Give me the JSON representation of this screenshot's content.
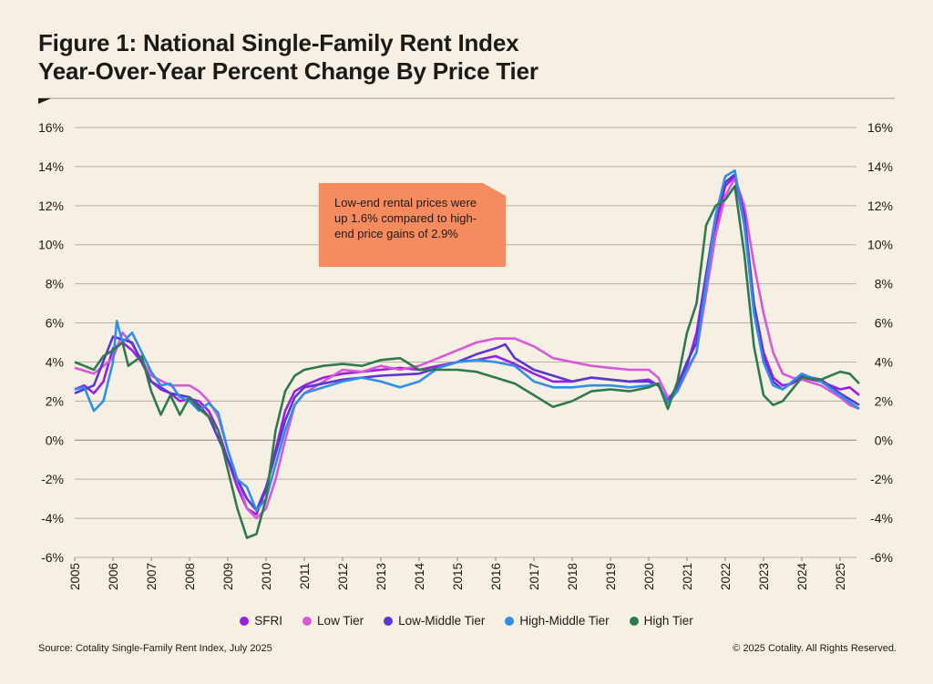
{
  "chart_data": {
    "type": "line",
    "title": "Figure 1: National Single-Family Rent Index",
    "subtitle": "Year-Over-Year Percent Change By Price Tier",
    "xlabel": "",
    "ylabel": "",
    "xlim": [
      2005,
      2025.5
    ],
    "ylim": [
      -6,
      16
    ],
    "x_ticks": [
      "2005",
      "2006",
      "2007",
      "2008",
      "2009",
      "2010",
      "2011",
      "2012",
      "2013",
      "2014",
      "2015",
      "2016",
      "2017",
      "2018",
      "2019",
      "2020",
      "2021",
      "2022",
      "2023",
      "2024",
      "2025"
    ],
    "y_ticks": [
      "16%",
      "14%",
      "12%",
      "10%",
      "8%",
      "6%",
      "4%",
      "2%",
      "0%",
      "-2%",
      "-4%",
      "-6%"
    ],
    "grid": true,
    "legend_position": "bottom",
    "annotation": "Low-end rental prices were up 1.6% compared to high-end price gains of 2.9%",
    "series": [
      {
        "name": "SFRI",
        "color": "#9a1fe0",
        "points": [
          [
            2005,
            2.6
          ],
          [
            2005.25,
            2.8
          ],
          [
            2005.5,
            2.4
          ],
          [
            2005.75,
            3.0
          ],
          [
            2006,
            4.7
          ],
          [
            2006.25,
            5.0
          ],
          [
            2006.5,
            4.6
          ],
          [
            2006.75,
            4.0
          ],
          [
            2007,
            3.0
          ],
          [
            2007.25,
            2.6
          ],
          [
            2007.5,
            2.4
          ],
          [
            2007.75,
            2.0
          ],
          [
            2008,
            2.1
          ],
          [
            2008.25,
            2.0
          ],
          [
            2008.5,
            1.5
          ],
          [
            2008.75,
            0.5
          ],
          [
            2009,
            -1.0
          ],
          [
            2009.25,
            -2.4
          ],
          [
            2009.5,
            -3.5
          ],
          [
            2009.75,
            -3.8
          ],
          [
            2010,
            -2.5
          ],
          [
            2010.25,
            -0.5
          ],
          [
            2010.5,
            1.5
          ],
          [
            2010.75,
            2.5
          ],
          [
            2011,
            2.8
          ],
          [
            2011.5,
            3.2
          ],
          [
            2012,
            3.4
          ],
          [
            2012.5,
            3.5
          ],
          [
            2013,
            3.6
          ],
          [
            2013.5,
            3.7
          ],
          [
            2014,
            3.6
          ],
          [
            2014.5,
            3.8
          ],
          [
            2015,
            4.0
          ],
          [
            2015.5,
            4.1
          ],
          [
            2016,
            4.3
          ],
          [
            2016.5,
            3.9
          ],
          [
            2017,
            3.4
          ],
          [
            2017.5,
            3.0
          ],
          [
            2018,
            3.0
          ],
          [
            2018.5,
            3.2
          ],
          [
            2019,
            3.1
          ],
          [
            2019.5,
            3.0
          ],
          [
            2020,
            3.1
          ],
          [
            2020.25,
            2.8
          ],
          [
            2020.5,
            2.0
          ],
          [
            2020.75,
            2.6
          ],
          [
            2021,
            3.8
          ],
          [
            2021.25,
            5.5
          ],
          [
            2021.5,
            8.5
          ],
          [
            2021.75,
            11.0
          ],
          [
            2022,
            13.0
          ],
          [
            2022.25,
            13.5
          ],
          [
            2022.5,
            11.0
          ],
          [
            2022.75,
            7.0
          ],
          [
            2023,
            4.5
          ],
          [
            2023.25,
            3.2
          ],
          [
            2023.5,
            2.8
          ],
          [
            2023.75,
            2.9
          ],
          [
            2024,
            3.2
          ],
          [
            2024.25,
            3.1
          ],
          [
            2024.5,
            3.0
          ],
          [
            2024.75,
            2.8
          ],
          [
            2025,
            2.6
          ],
          [
            2025.25,
            2.7
          ],
          [
            2025.5,
            2.3
          ]
        ]
      },
      {
        "name": "Low Tier",
        "color": "#d858d8",
        "points": [
          [
            2005,
            3.7
          ],
          [
            2005.5,
            3.4
          ],
          [
            2006,
            4.2
          ],
          [
            2006.25,
            5.5
          ],
          [
            2006.5,
            4.9
          ],
          [
            2007,
            3.3
          ],
          [
            2007.5,
            2.8
          ],
          [
            2008,
            2.8
          ],
          [
            2008.25,
            2.5
          ],
          [
            2008.5,
            2.0
          ],
          [
            2008.75,
            1.2
          ],
          [
            2009,
            -0.5
          ],
          [
            2009.25,
            -2.0
          ],
          [
            2009.5,
            -3.5
          ],
          [
            2009.75,
            -4.0
          ],
          [
            2010,
            -3.5
          ],
          [
            2010.25,
            -2.0
          ],
          [
            2010.5,
            0.0
          ],
          [
            2010.75,
            1.8
          ],
          [
            2011,
            2.4
          ],
          [
            2011.5,
            3.0
          ],
          [
            2012,
            3.6
          ],
          [
            2012.5,
            3.5
          ],
          [
            2013,
            3.8
          ],
          [
            2013.5,
            3.6
          ],
          [
            2014,
            3.8
          ],
          [
            2014.5,
            4.2
          ],
          [
            2015,
            4.6
          ],
          [
            2015.5,
            5.0
          ],
          [
            2016,
            5.2
          ],
          [
            2016.5,
            5.2
          ],
          [
            2017,
            4.8
          ],
          [
            2017.5,
            4.2
          ],
          [
            2018,
            4.0
          ],
          [
            2018.5,
            3.8
          ],
          [
            2019,
            3.7
          ],
          [
            2019.5,
            3.6
          ],
          [
            2020,
            3.6
          ],
          [
            2020.25,
            3.2
          ],
          [
            2020.5,
            2.2
          ],
          [
            2020.75,
            2.5
          ],
          [
            2021,
            3.5
          ],
          [
            2021.25,
            4.5
          ],
          [
            2021.5,
            7.5
          ],
          [
            2021.75,
            10.5
          ],
          [
            2022,
            12.5
          ],
          [
            2022.25,
            13.4
          ],
          [
            2022.5,
            12.0
          ],
          [
            2022.75,
            9.0
          ],
          [
            2023,
            6.5
          ],
          [
            2023.25,
            4.5
          ],
          [
            2023.5,
            3.4
          ],
          [
            2023.75,
            3.2
          ],
          [
            2024,
            3.1
          ],
          [
            2024.5,
            2.8
          ],
          [
            2025,
            2.2
          ],
          [
            2025.25,
            1.8
          ],
          [
            2025.5,
            1.6
          ]
        ]
      },
      {
        "name": "Low-Middle Tier",
        "color": "#5a36d2",
        "points": [
          [
            2005,
            2.4
          ],
          [
            2005.5,
            2.8
          ],
          [
            2006,
            5.3
          ],
          [
            2006.5,
            5.0
          ],
          [
            2007,
            3.0
          ],
          [
            2007.5,
            2.4
          ],
          [
            2008,
            2.2
          ],
          [
            2008.25,
            1.8
          ],
          [
            2008.5,
            1.2
          ],
          [
            2009,
            -1.0
          ],
          [
            2009.5,
            -3.0
          ],
          [
            2009.75,
            -3.6
          ],
          [
            2010,
            -2.4
          ],
          [
            2010.5,
            1.0
          ],
          [
            2010.75,
            2.2
          ],
          [
            2011,
            2.7
          ],
          [
            2012,
            3.1
          ],
          [
            2013,
            3.3
          ],
          [
            2014,
            3.4
          ],
          [
            2015,
            4.0
          ],
          [
            2015.5,
            4.4
          ],
          [
            2016,
            4.7
          ],
          [
            2016.25,
            4.9
          ],
          [
            2016.5,
            4.2
          ],
          [
            2017,
            3.6
          ],
          [
            2017.5,
            3.3
          ],
          [
            2018,
            3.0
          ],
          [
            2018.5,
            3.2
          ],
          [
            2019,
            3.1
          ],
          [
            2019.5,
            3.0
          ],
          [
            2020,
            3.0
          ],
          [
            2020.25,
            2.8
          ],
          [
            2020.5,
            2.0
          ],
          [
            2020.75,
            2.8
          ],
          [
            2021,
            4.0
          ],
          [
            2021.25,
            5.0
          ],
          [
            2021.5,
            8.5
          ],
          [
            2021.75,
            11.5
          ],
          [
            2022,
            13.2
          ],
          [
            2022.25,
            13.6
          ],
          [
            2022.5,
            11.5
          ],
          [
            2022.75,
            7.0
          ],
          [
            2023,
            4.2
          ],
          [
            2023.25,
            3.0
          ],
          [
            2023.5,
            2.6
          ],
          [
            2024,
            3.3
          ],
          [
            2024.5,
            3.1
          ],
          [
            2025,
            2.4
          ],
          [
            2025.5,
            1.8
          ]
        ]
      },
      {
        "name": "High-Middle Tier",
        "color": "#2f8fe6",
        "points": [
          [
            2005,
            2.6
          ],
          [
            2005.25,
            2.7
          ],
          [
            2005.5,
            1.5
          ],
          [
            2005.75,
            2.0
          ],
          [
            2006,
            4.0
          ],
          [
            2006.1,
            6.1
          ],
          [
            2006.25,
            5.0
          ],
          [
            2006.5,
            5.5
          ],
          [
            2006.75,
            4.5
          ],
          [
            2007,
            3.5
          ],
          [
            2007.25,
            2.8
          ],
          [
            2007.5,
            2.9
          ],
          [
            2007.75,
            2.2
          ],
          [
            2008,
            2.0
          ],
          [
            2008.25,
            1.5
          ],
          [
            2008.5,
            1.9
          ],
          [
            2008.75,
            1.4
          ],
          [
            2009,
            -0.5
          ],
          [
            2009.25,
            -2.0
          ],
          [
            2009.5,
            -2.4
          ],
          [
            2009.75,
            -3.6
          ],
          [
            2010,
            -3.0
          ],
          [
            2010.5,
            0.5
          ],
          [
            2010.75,
            1.8
          ],
          [
            2011,
            2.4
          ],
          [
            2012,
            3.0
          ],
          [
            2012.5,
            3.2
          ],
          [
            2013,
            3.0
          ],
          [
            2013.5,
            2.7
          ],
          [
            2014,
            3.0
          ],
          [
            2014.5,
            3.7
          ],
          [
            2015,
            4.0
          ],
          [
            2015.5,
            4.1
          ],
          [
            2016,
            4.0
          ],
          [
            2016.5,
            3.8
          ],
          [
            2017,
            3.0
          ],
          [
            2017.5,
            2.7
          ],
          [
            2018,
            2.7
          ],
          [
            2018.5,
            2.8
          ],
          [
            2019,
            2.8
          ],
          [
            2019.5,
            2.7
          ],
          [
            2020,
            2.8
          ],
          [
            2020.25,
            2.9
          ],
          [
            2020.5,
            1.9
          ],
          [
            2020.75,
            2.5
          ],
          [
            2021,
            3.6
          ],
          [
            2021.25,
            4.5
          ],
          [
            2021.5,
            8.0
          ],
          [
            2021.75,
            11.5
          ],
          [
            2022,
            13.5
          ],
          [
            2022.25,
            13.8
          ],
          [
            2022.5,
            11.0
          ],
          [
            2022.75,
            6.5
          ],
          [
            2023,
            4.0
          ],
          [
            2023.25,
            2.8
          ],
          [
            2023.5,
            2.6
          ],
          [
            2024,
            3.4
          ],
          [
            2024.5,
            3.0
          ],
          [
            2025,
            2.3
          ],
          [
            2025.5,
            1.6
          ]
        ]
      },
      {
        "name": "High Tier",
        "color": "#2f7a4c",
        "points": [
          [
            2005,
            4.0
          ],
          [
            2005.25,
            3.8
          ],
          [
            2005.5,
            3.6
          ],
          [
            2005.75,
            4.3
          ],
          [
            2006,
            4.6
          ],
          [
            2006.25,
            5.0
          ],
          [
            2006.4,
            3.8
          ],
          [
            2006.75,
            4.3
          ],
          [
            2007,
            2.5
          ],
          [
            2007.25,
            1.3
          ],
          [
            2007.5,
            2.3
          ],
          [
            2007.75,
            1.3
          ],
          [
            2008,
            2.2
          ],
          [
            2008.25,
            1.6
          ],
          [
            2008.5,
            1.2
          ],
          [
            2008.75,
            0.5
          ],
          [
            2009,
            -1.5
          ],
          [
            2009.25,
            -3.5
          ],
          [
            2009.5,
            -5.0
          ],
          [
            2009.75,
            -4.8
          ],
          [
            2010,
            -3.0
          ],
          [
            2010.25,
            0.5
          ],
          [
            2010.5,
            2.5
          ],
          [
            2010.75,
            3.3
          ],
          [
            2011,
            3.6
          ],
          [
            2011.5,
            3.8
          ],
          [
            2012,
            3.9
          ],
          [
            2012.5,
            3.8
          ],
          [
            2013,
            4.1
          ],
          [
            2013.5,
            4.2
          ],
          [
            2014,
            3.6
          ],
          [
            2014.5,
            3.6
          ],
          [
            2015,
            3.6
          ],
          [
            2015.5,
            3.5
          ],
          [
            2016,
            3.2
          ],
          [
            2016.5,
            2.9
          ],
          [
            2017,
            2.3
          ],
          [
            2017.5,
            1.7
          ],
          [
            2018,
            2.0
          ],
          [
            2018.5,
            2.5
          ],
          [
            2019,
            2.6
          ],
          [
            2019.5,
            2.5
          ],
          [
            2020,
            2.7
          ],
          [
            2020.25,
            2.9
          ],
          [
            2020.5,
            1.6
          ],
          [
            2020.75,
            3.0
          ],
          [
            2021,
            5.5
          ],
          [
            2021.25,
            7.0
          ],
          [
            2021.5,
            11.0
          ],
          [
            2021.75,
            12.0
          ],
          [
            2022,
            12.3
          ],
          [
            2022.25,
            13.0
          ],
          [
            2022.5,
            9.5
          ],
          [
            2022.75,
            4.8
          ],
          [
            2023,
            2.3
          ],
          [
            2023.25,
            1.8
          ],
          [
            2023.5,
            2.0
          ],
          [
            2024,
            3.2
          ],
          [
            2024.5,
            3.1
          ],
          [
            2025,
            3.5
          ],
          [
            2025.25,
            3.4
          ],
          [
            2025.5,
            2.9
          ]
        ]
      }
    ]
  },
  "footer": {
    "source": "Source: Cotality Single-Family Rent Index, July 2025",
    "copyright": "© 2025 Cotality. All Rights Reserved."
  }
}
